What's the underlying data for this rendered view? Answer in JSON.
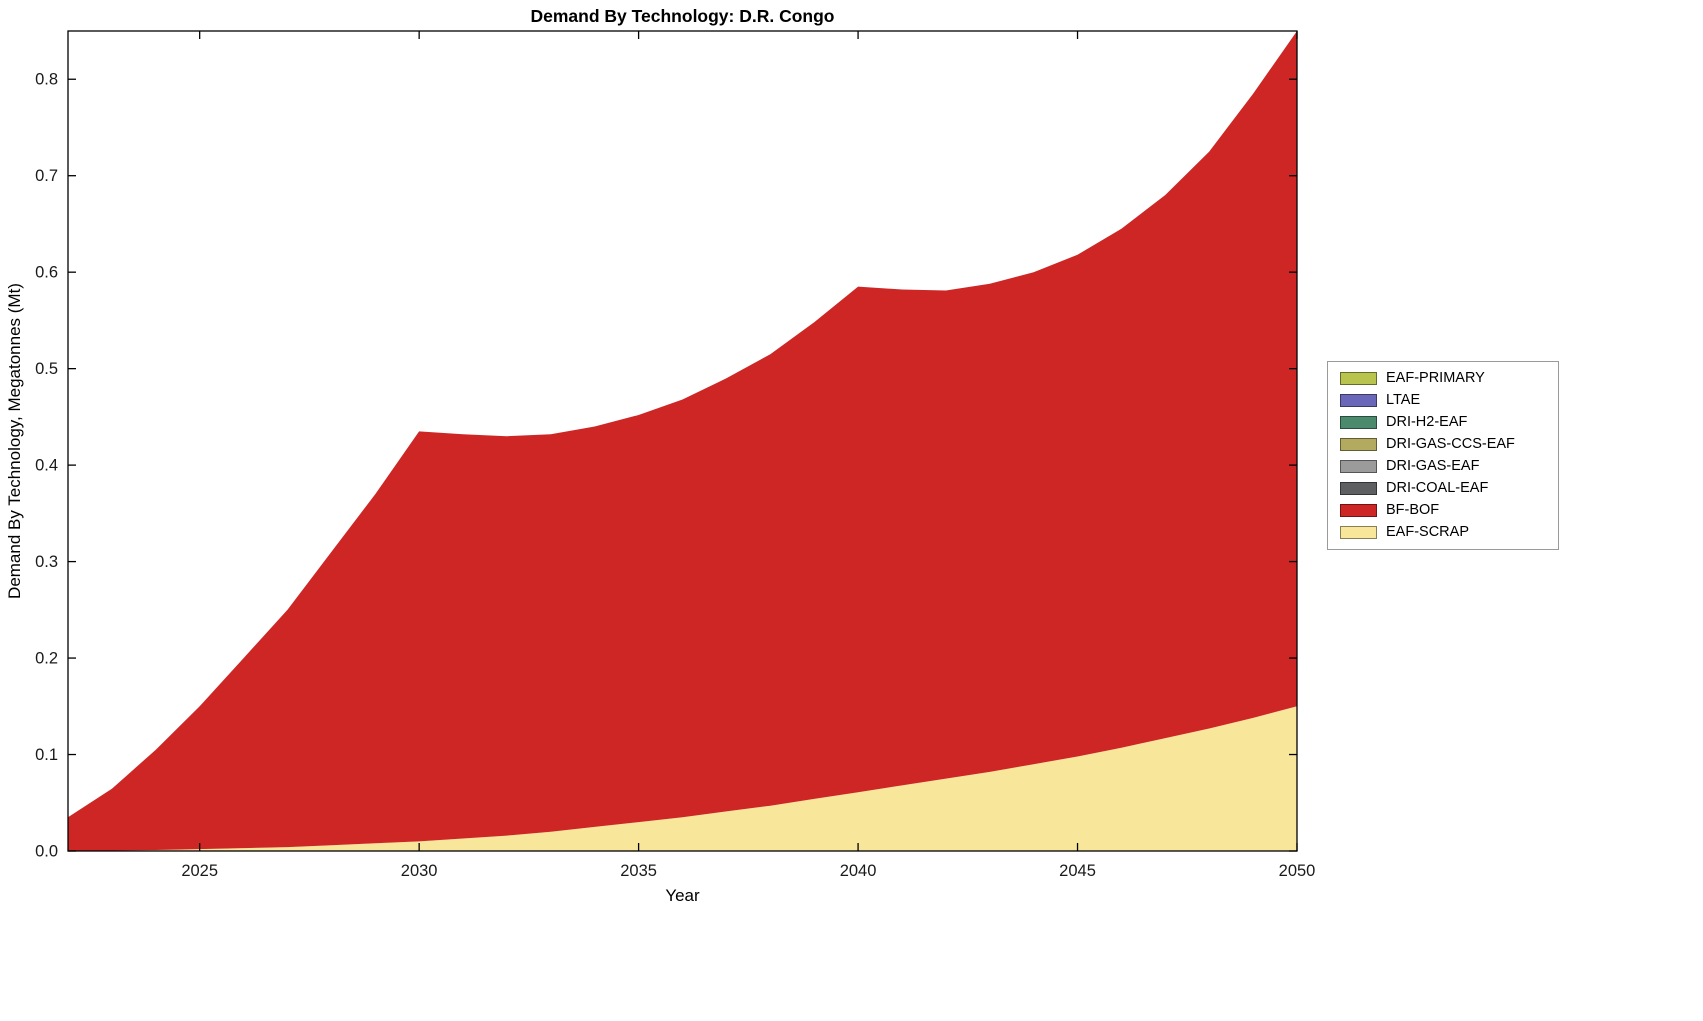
{
  "page": {
    "background": "#ffffff"
  },
  "chart_data": {
    "type": "area",
    "stacked": true,
    "title": "Demand By Technology: D.R. Congo",
    "xlabel": "Year",
    "ylabel": "Demand By Technology, Megatonnes (Mt)",
    "xlim": [
      2022,
      2050
    ],
    "ylim": [
      0,
      0.85
    ],
    "grid": false,
    "legend_position": "outside-right",
    "x_ticks": [
      2025,
      2030,
      2035,
      2040,
      2045,
      2050
    ],
    "y_ticks": [
      0,
      0.1,
      0.2,
      0.3,
      0.4,
      0.5,
      0.6,
      0.7,
      0.8
    ],
    "y_tick_labels": [
      "0.0",
      "0.1",
      "0.2",
      "0.3",
      "0.4",
      "0.5",
      "0.6",
      "0.7",
      "0.8"
    ],
    "x": [
      2022,
      2023,
      2024,
      2025,
      2026,
      2027,
      2028,
      2029,
      2030,
      2031,
      2032,
      2033,
      2034,
      2035,
      2036,
      2037,
      2038,
      2039,
      2040,
      2041,
      2042,
      2043,
      2044,
      2045,
      2046,
      2047,
      2048,
      2049,
      2050
    ],
    "series": [
      {
        "name": "EAF-PRIMARY",
        "color": "#b9c44f",
        "values": 0
      },
      {
        "name": "LTAE",
        "color": "#6a67b8",
        "values": 0
      },
      {
        "name": "DRI-H2-EAF",
        "color": "#4b8a6d",
        "values": 0
      },
      {
        "name": "DRI-GAS-CCS-EAF",
        "color": "#b2aa5f",
        "values": 0
      },
      {
        "name": "DRI-GAS-EAF",
        "color": "#9b9b9b",
        "values": 0
      },
      {
        "name": "DRI-COAL-EAF",
        "color": "#5e5f61",
        "values": 0
      },
      {
        "name": "BF-BOF",
        "color": "#cd2625",
        "values": [
          0.035,
          0.064,
          0.104,
          0.148,
          0.197,
          0.246,
          0.304,
          0.362,
          0.425,
          0.419,
          0.414,
          0.412,
          0.415,
          0.422,
          0.433,
          0.449,
          0.468,
          0.494,
          0.524,
          0.514,
          0.506,
          0.506,
          0.51,
          0.52,
          0.538,
          0.563,
          0.598,
          0.647,
          0.7
        ]
      },
      {
        "name": "EAF-SCRAP",
        "color": "#f8e69b",
        "values": [
          0.0,
          0.0005,
          0.001,
          0.002,
          0.003,
          0.004,
          0.006,
          0.008,
          0.01,
          0.013,
          0.016,
          0.02,
          0.025,
          0.03,
          0.035,
          0.041,
          0.047,
          0.054,
          0.061,
          0.068,
          0.075,
          0.082,
          0.09,
          0.098,
          0.107,
          0.117,
          0.127,
          0.138,
          0.15
        ]
      }
    ],
    "stack_bottom_to_top": [
      "EAF-SCRAP",
      "BF-BOF",
      "DRI-COAL-EAF",
      "DRI-GAS-EAF",
      "DRI-GAS-CCS-EAF",
      "DRI-H2-EAF",
      "LTAE",
      "EAF-PRIMARY"
    ]
  }
}
